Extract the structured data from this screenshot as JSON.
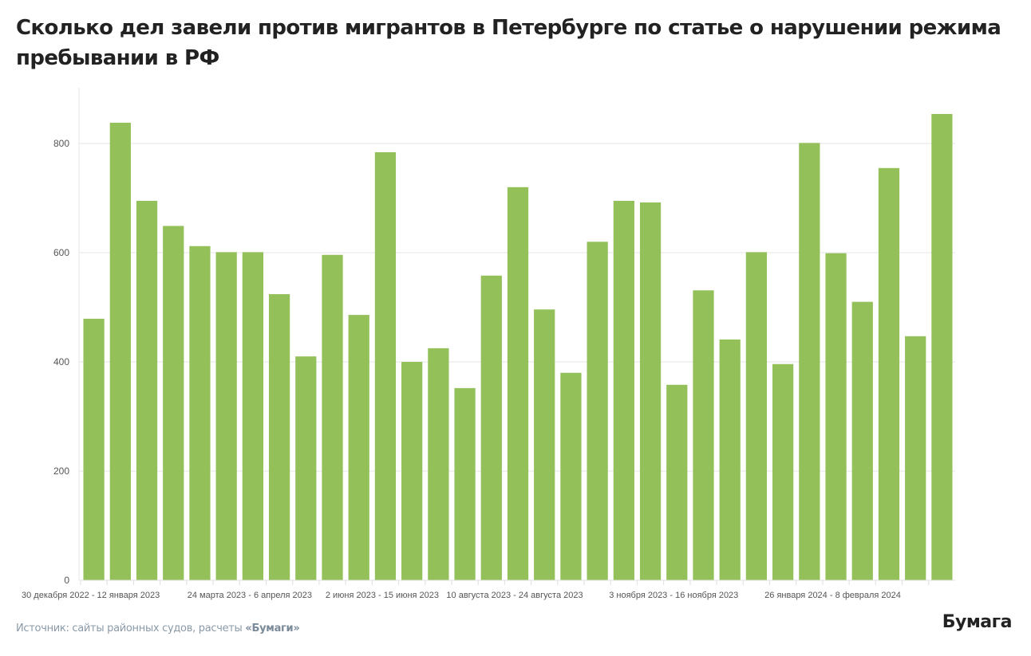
{
  "title": "Сколько дел завели против мигрантов в Петербурге по статье о нарушении режима пребывании в РФ",
  "source": {
    "prefix": "Источник: сайты районных судов, расчеты ",
    "brand": "«Бумаги»"
  },
  "logo": "Бумага",
  "colors": {
    "bar": "#94c05a",
    "grid": "#e6e6e6",
    "axis_text": "#555555"
  },
  "chart_data": {
    "type": "bar",
    "title": "Сколько дел завели против мигрантов в Петербурге по статье о нарушении режима пребывании в РФ",
    "xlabel": "",
    "ylabel": "",
    "ylim": [
      0,
      900
    ],
    "yticks": [
      0,
      200,
      400,
      600,
      800
    ],
    "grid": true,
    "categories": [
      "30 декабря 2022 - 12 января 2023",
      "",
      "",
      "",
      "",
      "",
      "24 марта 2023 - 6 апреля 2023",
      "",
      "",
      "",
      "",
      "2 июня 2023 - 15 июня 2023",
      "",
      "",
      "",
      "",
      "10 августа 2023 - 24 августа 2023",
      "",
      "",
      "",
      "",
      "",
      "3 ноября 2023 - 16 ноября 2023",
      "",
      "",
      "",
      "",
      "",
      "26 января 2024 - 8 февраля 2024",
      "",
      "",
      "",
      ""
    ],
    "values": [
      479,
      838,
      695,
      649,
      612,
      601,
      601,
      524,
      410,
      596,
      486,
      784,
      400,
      425,
      352,
      558,
      720,
      496,
      380,
      620,
      695,
      692,
      358,
      531,
      441,
      601,
      396,
      801,
      599,
      510,
      755,
      447,
      854
    ]
  }
}
